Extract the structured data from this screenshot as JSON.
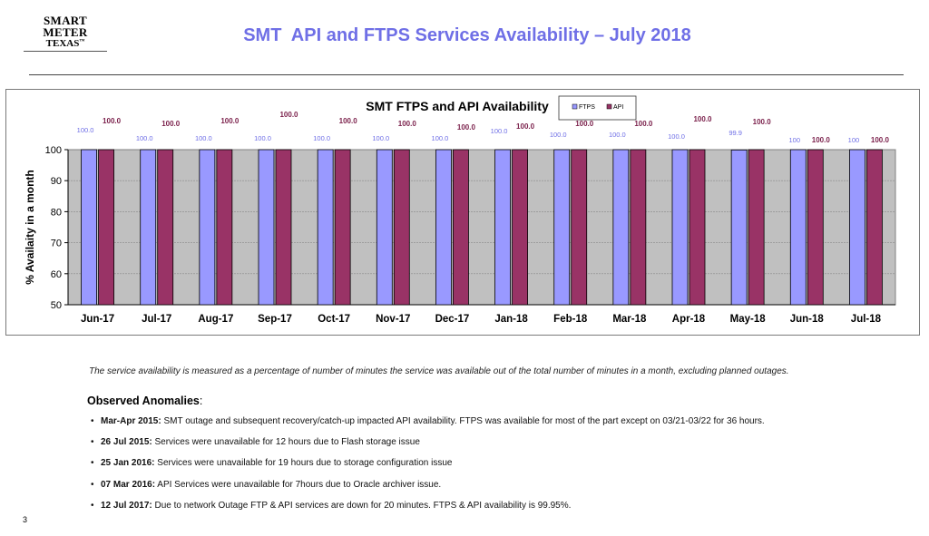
{
  "logo": {
    "line1": "SMART METER",
    "line2": "TEXAS",
    "tm": "™"
  },
  "header": {
    "title": "SMT  API and FTPS Services Availability – July 2018"
  },
  "colors": {
    "ftps": "#9999ff",
    "api": "#993366",
    "plot_bg": "#c0c0c0",
    "title_blue": "#6f6fe6"
  },
  "chart_data": {
    "type": "bar",
    "title": "SMT FTPS and API Availability",
    "ylabel": "% Availaity in a month",
    "xlabel": "",
    "ylim": [
      50,
      100
    ],
    "yticks": [
      50,
      60,
      70,
      80,
      90,
      100
    ],
    "legend": [
      "FTPS",
      "API"
    ],
    "legend_position": "top-right of title",
    "categories": [
      "Jun-17",
      "Jul-17",
      "Aug-17",
      "Sep-17",
      "Oct-17",
      "Nov-17",
      "Dec-17",
      "Jan-18",
      "Feb-18",
      "Mar-18",
      "Apr-18",
      "May-18",
      "Jun-18",
      "Jul-18"
    ],
    "series": [
      {
        "name": "FTPS",
        "values": [
          100,
          100,
          100,
          100,
          100,
          100,
          100,
          100,
          100,
          100,
          100,
          99.9,
          100,
          100
        ],
        "labels": [
          "100.0",
          "100.0",
          "100.0",
          "100.0",
          "100.0",
          "100.0",
          "100.0",
          "100.0",
          "100.0",
          "100.0",
          "100.0",
          "99.9",
          "100",
          "100"
        ]
      },
      {
        "name": "API",
        "values": [
          100,
          100,
          100,
          100,
          100,
          100,
          100,
          100,
          100,
          100,
          100,
          100,
          100,
          100
        ],
        "labels": [
          "100.0",
          "100.0",
          "100.0",
          "100.0",
          "100.0",
          "100.0",
          "100.0",
          "100.0",
          "100.0",
          "100.0",
          "100.0",
          "100.0",
          "100.0",
          "100.0"
        ]
      }
    ]
  },
  "note": "The service availability is measured as a percentage of number of minutes the service was available out of the total number of minutes in a month, excluding planned outages.",
  "anomalies": {
    "heading": "Observed Anomalies",
    "heading_suffix": ":",
    "bullet": "•",
    "items": [
      {
        "label": "Mar-Apr 2015:",
        "text": " SMT outage and subsequent recovery/catch-up impacted API availability. FTPS was available for most of the part except on 03/21-03/22 for 36 hours."
      },
      {
        "label": "26 Jul 2015:",
        "text": " Services were unavailable for 12 hours due to Flash storage issue"
      },
      {
        "label": "25 Jan 2016:",
        "text": " Services were unavailable for 19 hours due to storage configuration issue"
      },
      {
        "label": "07 Mar 2016:",
        "text": "   API Services were unavailable for 7hours due to Oracle archiver issue."
      },
      {
        "label": "12 Jul 2017:",
        "text": "   Due to network Outage FTP & API services are down for 20 minutes. FTPS & API availability is 99.95%."
      }
    ]
  },
  "page_number": "3"
}
